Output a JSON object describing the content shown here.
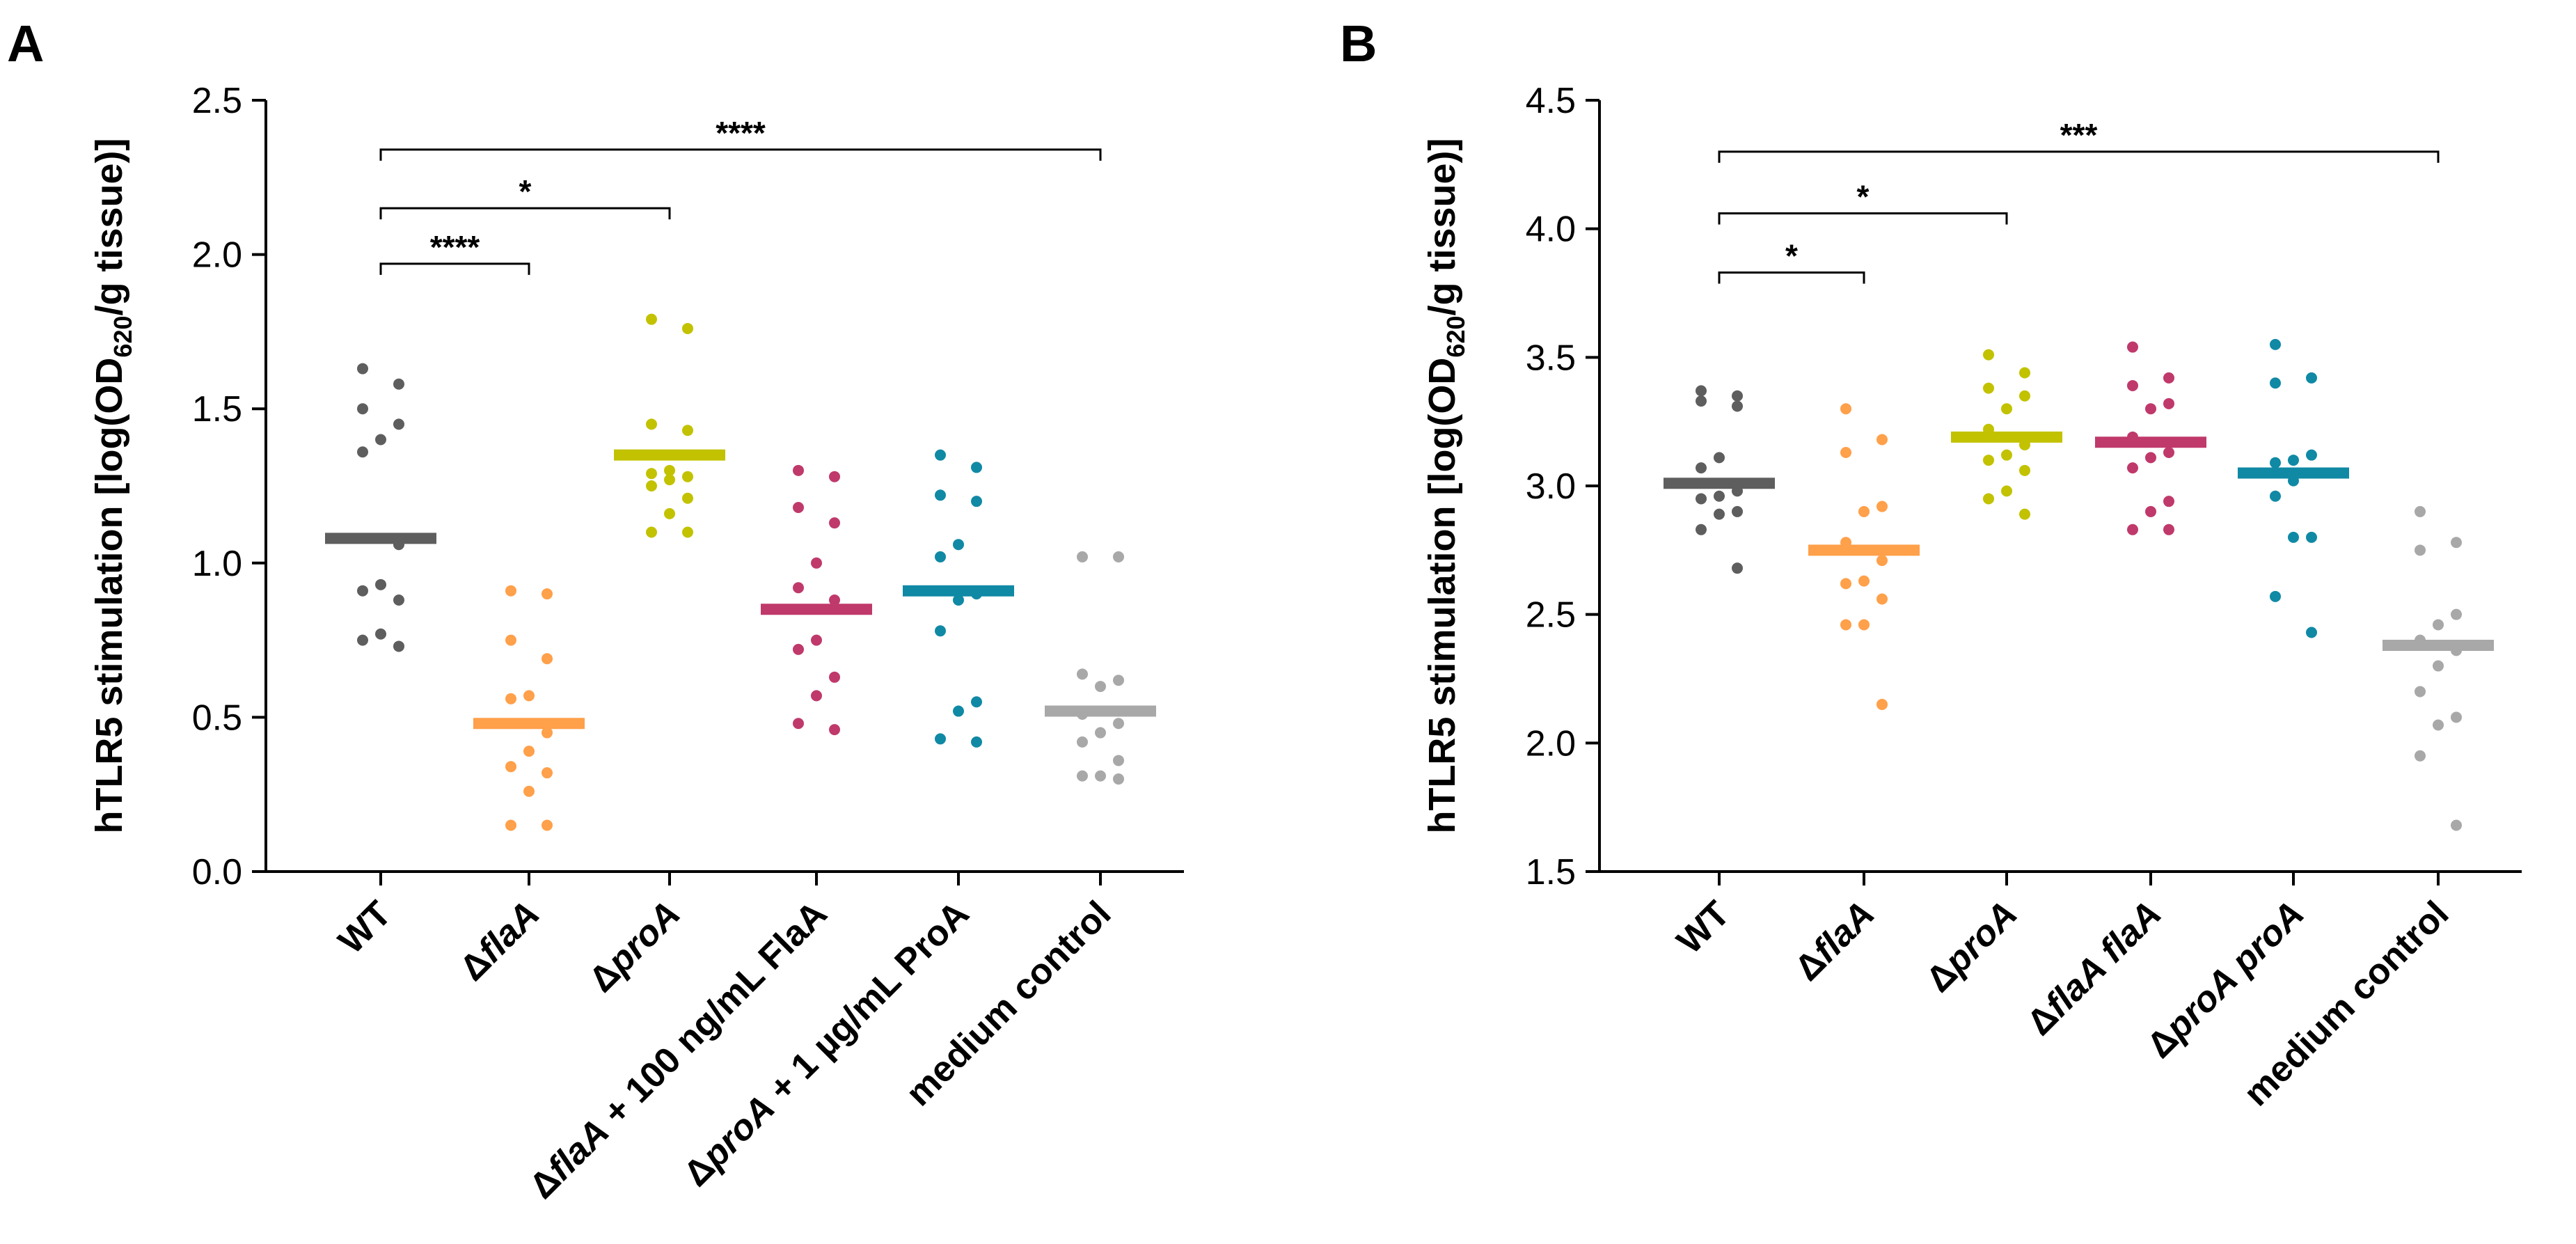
{
  "chart_data": [
    {
      "panel": "A",
      "type": "scatter",
      "ylabel_prefix": "hTLR5 stimulation [log(OD",
      "ylabel_sub": "620",
      "ylabel_suffix": "/g tissue)]",
      "ylim": [
        0,
        2.5
      ],
      "yticks": [
        0,
        0.5,
        1.0,
        1.5,
        2.0,
        2.5
      ],
      "ytick_labels": [
        "0.0",
        "0.5",
        "1.0",
        "1.5",
        "2.0",
        "2.5"
      ],
      "categories": [
        {
          "parts": [
            {
              "t": "WT",
              "i": false
            }
          ]
        },
        {
          "parts": [
            {
              "t": "Δ",
              "i": false
            },
            {
              "t": "flaA",
              "i": true
            }
          ]
        },
        {
          "parts": [
            {
              "t": "Δ",
              "i": false
            },
            {
              "t": "proA",
              "i": true
            }
          ]
        },
        {
          "parts": [
            {
              "t": "Δ",
              "i": false
            },
            {
              "t": "flaA",
              "i": true
            },
            {
              "t": " + 100 ng/mL FlaA",
              "i": false
            }
          ]
        },
        {
          "parts": [
            {
              "t": "Δ",
              "i": false
            },
            {
              "t": "proA",
              "i": true
            },
            {
              "t": " + 1 µg/mL ProA",
              "i": false
            }
          ]
        },
        {
          "parts": [
            {
              "t": "medium control",
              "i": false
            }
          ]
        }
      ],
      "series": [
        {
          "name": "WT",
          "color": "#5e5e5e",
          "mean": 1.08,
          "values": [
            1.63,
            1.58,
            1.5,
            1.45,
            1.4,
            1.36,
            1.06,
            0.93,
            0.91,
            0.88,
            0.77,
            0.75,
            0.73
          ]
        },
        {
          "name": "ΔflaA",
          "color": "#ffa04a",
          "mean": 0.48,
          "values": [
            0.91,
            0.9,
            0.75,
            0.69,
            0.57,
            0.56,
            0.45,
            0.39,
            0.34,
            0.32,
            0.26,
            0.15,
            0.15
          ]
        },
        {
          "name": "ΔproA",
          "color": "#c2c200",
          "mean": 1.35,
          "values": [
            1.79,
            1.76,
            1.45,
            1.43,
            1.3,
            1.29,
            1.28,
            1.27,
            1.25,
            1.21,
            1.16,
            1.1,
            1.1
          ]
        },
        {
          "name": "ΔflaA + 100 ng/mL FlaA",
          "color": "#c0396b",
          "mean": 0.85,
          "values": [
            1.3,
            1.28,
            1.18,
            1.13,
            1.0,
            0.92,
            0.88,
            0.75,
            0.72,
            0.63,
            0.57,
            0.48,
            0.46
          ]
        },
        {
          "name": "ΔproA + 1 µg/mL ProA",
          "color": "#1089a5",
          "mean": 0.91,
          "values": [
            1.35,
            1.31,
            1.22,
            1.2,
            1.06,
            1.02,
            0.9,
            0.88,
            0.78,
            0.55,
            0.52,
            0.43,
            0.42
          ]
        },
        {
          "name": "medium control",
          "color": "#a8a8a8",
          "mean": 0.52,
          "values": [
            1.02,
            1.02,
            0.64,
            0.62,
            0.6,
            0.51,
            0.48,
            0.45,
            0.42,
            0.36,
            0.31,
            0.31,
            0.3
          ]
        }
      ],
      "comparisons": [
        {
          "from": 0,
          "to": 1,
          "y": 1.97,
          "label": "****"
        },
        {
          "from": 0,
          "to": 2,
          "y": 2.15,
          "label": "*"
        },
        {
          "from": 0,
          "to": 5,
          "y": 2.34,
          "label": "****"
        }
      ]
    },
    {
      "panel": "B",
      "type": "scatter",
      "ylabel_prefix": "hTLR5 stimulation [log(OD",
      "ylabel_sub": "620",
      "ylabel_suffix": "/g tissue)]",
      "ylim": [
        1.5,
        4.5
      ],
      "yticks": [
        1.5,
        2.0,
        2.5,
        3.0,
        3.5,
        4.0,
        4.5
      ],
      "ytick_labels": [
        "1.5",
        "2.0",
        "2.5",
        "3.0",
        "3.5",
        "4.0",
        "4.5"
      ],
      "categories": [
        {
          "parts": [
            {
              "t": "WT",
              "i": false
            }
          ]
        },
        {
          "parts": [
            {
              "t": "Δ",
              "i": false
            },
            {
              "t": "flaA",
              "i": true
            }
          ]
        },
        {
          "parts": [
            {
              "t": "Δ",
              "i": false
            },
            {
              "t": "proA",
              "i": true
            }
          ]
        },
        {
          "parts": [
            {
              "t": "Δ",
              "i": false
            },
            {
              "t": "flaA flaA",
              "i": true
            }
          ]
        },
        {
          "parts": [
            {
              "t": "Δ",
              "i": false
            },
            {
              "t": "proA proA",
              "i": true
            }
          ]
        },
        {
          "parts": [
            {
              "t": "medium control",
              "i": false
            }
          ]
        }
      ],
      "series": [
        {
          "name": "WT",
          "color": "#5e5e5e",
          "mean": 3.01,
          "values": [
            3.37,
            3.35,
            3.33,
            3.31,
            3.11,
            3.07,
            2.98,
            2.96,
            2.95,
            2.9,
            2.89,
            2.83,
            2.68
          ]
        },
        {
          "name": "ΔflaA",
          "color": "#ffa04a",
          "mean": 2.75,
          "values": [
            3.3,
            3.18,
            3.13,
            2.92,
            2.9,
            2.78,
            2.71,
            2.63,
            2.62,
            2.56,
            2.46,
            2.46,
            2.15
          ]
        },
        {
          "name": "ΔproA",
          "color": "#c2c200",
          "mean": 3.19,
          "values": [
            3.51,
            3.44,
            3.38,
            3.35,
            3.3,
            3.22,
            3.16,
            3.12,
            3.1,
            3.06,
            2.98,
            2.95,
            2.89
          ]
        },
        {
          "name": "ΔflaA flaA",
          "color": "#c0396b",
          "mean": 3.17,
          "values": [
            3.54,
            3.42,
            3.39,
            3.32,
            3.3,
            3.19,
            3.13,
            3.11,
            3.07,
            2.94,
            2.9,
            2.83,
            2.83
          ]
        },
        {
          "name": "ΔproA proA",
          "color": "#1089a5",
          "mean": 3.05,
          "values": [
            3.55,
            3.42,
            3.4,
            3.12,
            3.1,
            3.09,
            3.05,
            3.02,
            2.96,
            2.8,
            2.8,
            2.57,
            2.43
          ]
        },
        {
          "name": "medium control",
          "color": "#a8a8a8",
          "mean": 2.38,
          "values": [
            2.9,
            2.78,
            2.75,
            2.5,
            2.46,
            2.4,
            2.36,
            2.3,
            2.2,
            2.1,
            2.07,
            1.95,
            1.68
          ]
        }
      ],
      "comparisons": [
        {
          "from": 0,
          "to": 1,
          "y": 3.83,
          "label": "*"
        },
        {
          "from": 0,
          "to": 2,
          "y": 4.06,
          "label": "*"
        },
        {
          "from": 0,
          "to": 5,
          "y": 4.3,
          "label": "***"
        }
      ]
    }
  ]
}
